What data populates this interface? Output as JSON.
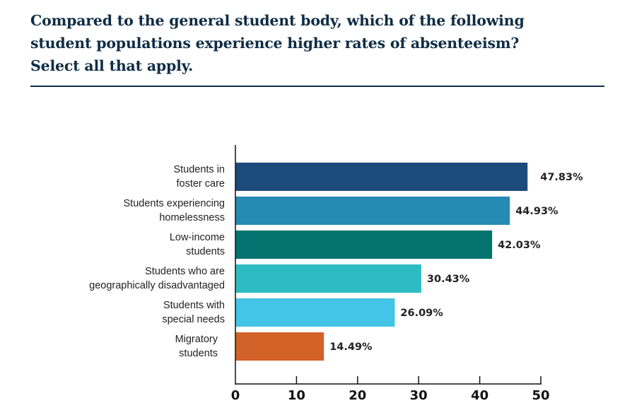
{
  "chart_data": {
    "type": "bar",
    "orientation": "horizontal",
    "title": "Compared to the general student body, which of the following student populations experience higher rates of absenteeism? Select all that apply.",
    "title_lines": [
      "Compared to the general student body, which of the following",
      "student populations experience higher rates of absenteeism?",
      "Select all that apply."
    ],
    "categories": [
      [
        "Students in",
        "foster care"
      ],
      [
        "Students experiencing",
        "homelessness"
      ],
      [
        "Low-income",
        "students"
      ],
      [
        "Students who are",
        "geographically disadvantaged"
      ],
      [
        "Students with",
        "special needs"
      ],
      [
        "Migratory",
        "students"
      ]
    ],
    "values": [
      47.83,
      44.93,
      42.03,
      30.43,
      26.09,
      14.49
    ],
    "data_labels": [
      "47.83%",
      "44.93%",
      "42.03%",
      "30.43%",
      "26.09%",
      "14.49%"
    ],
    "colors": [
      "#1c4a7a",
      "#258ab4",
      "#02736e",
      "#2ebcc3",
      "#42c5e7",
      "#d36228"
    ],
    "xlim": [
      0,
      50
    ],
    "xticks": [
      "0",
      "10",
      "20",
      "30",
      "40",
      "50"
    ],
    "xlabel": "",
    "ylabel": "",
    "grid": false,
    "legend": "none"
  }
}
